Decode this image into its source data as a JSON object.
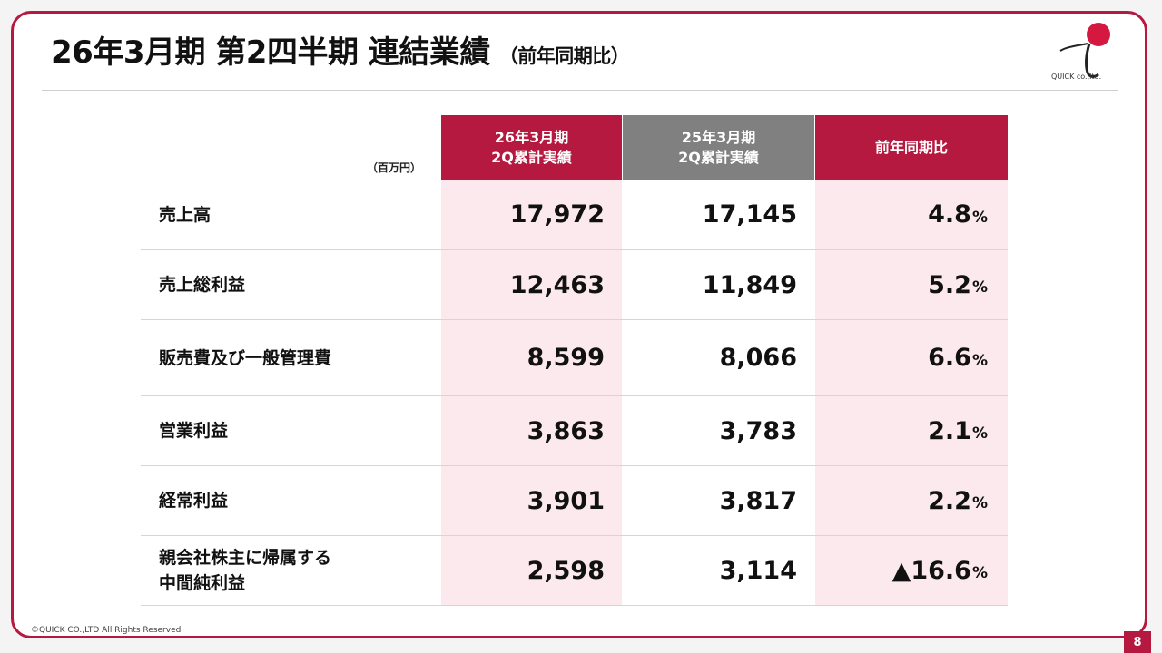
{
  "header": {
    "title": "26年3月期 第2四半期 連結業績",
    "subtitle": "（前年同期比）"
  },
  "logo": {
    "text": "QUICK co.,ltd.",
    "icon": "quick-logo-icon",
    "accent_color": "#d4183f"
  },
  "table": {
    "unit": "（百万円）",
    "columns": [
      {
        "line1": "26年3月期",
        "line2": "2Q累計実績",
        "color": "#b6193f"
      },
      {
        "line1": "25年3月期",
        "line2": "2Q累計実績",
        "color": "#808080"
      },
      {
        "line1": "前年同期比",
        "line2": "",
        "color": "#b6193f"
      }
    ],
    "rows": [
      {
        "label": "売上高",
        "label2": "",
        "current": "17,972",
        "previous": "17,145",
        "change": "4.8",
        "pct": "%"
      },
      {
        "label": "売上総利益",
        "label2": "",
        "current": "12,463",
        "previous": "11,849",
        "change": "5.2",
        "pct": "%"
      },
      {
        "label": "販売費及び一般管理費",
        "label2": "",
        "current": "8,599",
        "previous": "8,066",
        "change": "6.6",
        "pct": "%"
      },
      {
        "label": "営業利益",
        "label2": "",
        "current": "3,863",
        "previous": "3,783",
        "change": "2.1",
        "pct": "%"
      },
      {
        "label": "経常利益",
        "label2": "",
        "current": "3,901",
        "previous": "3,817",
        "change": "2.2",
        "pct": "%"
      },
      {
        "label": "親会社株主に帰属する",
        "label2": "中間純利益",
        "current": "2,598",
        "previous": "3,114",
        "change": "▲16.6",
        "pct": "%"
      }
    ]
  },
  "footer": {
    "copyright": "©QUICK CO.,LTD All Rights Reserved",
    "page": "8"
  }
}
